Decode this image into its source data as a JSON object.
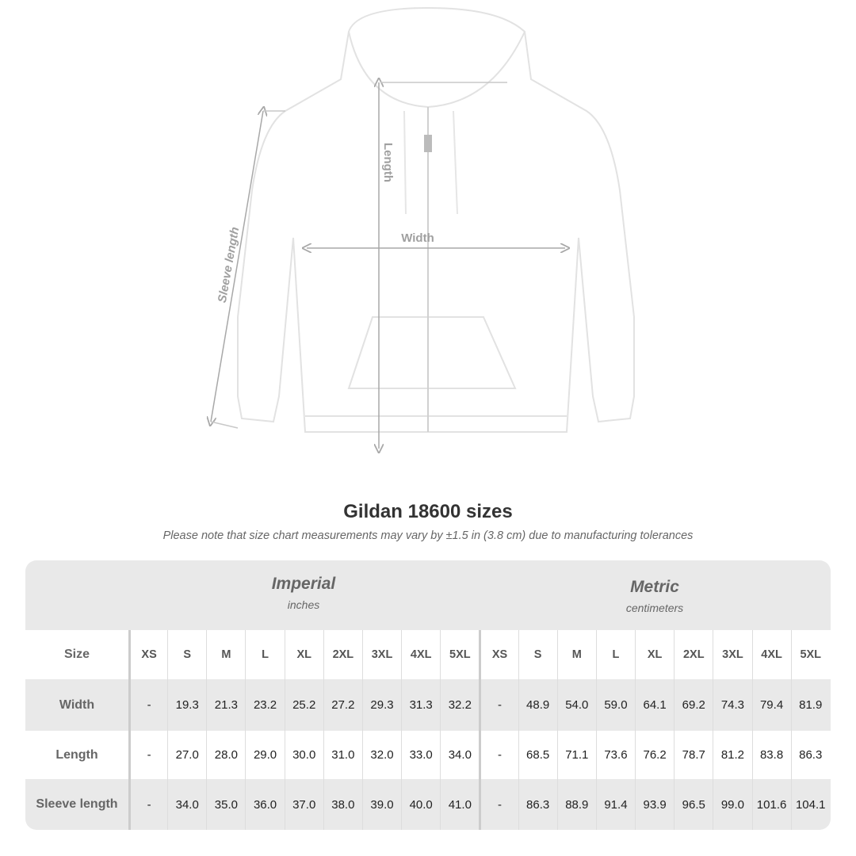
{
  "diagram": {
    "labels": {
      "length": "Length",
      "width": "Width",
      "sleeve": "Sleeve length"
    },
    "colors": {
      "garment": "#ffffff",
      "outline": "#e2e2e2",
      "arrow": "#a8a8a8"
    }
  },
  "title": "Gildan 18600 sizes",
  "note": "Please note that size chart measurements may vary by ±1.5 in (3.8 cm) due to manufacturing tolerances",
  "table": {
    "imperial": {
      "name": "Imperial",
      "unit": "inches"
    },
    "metric": {
      "name": "Metric",
      "unit": "centimeters"
    },
    "size_label": "Size",
    "sizes": [
      "XS",
      "S",
      "M",
      "L",
      "XL",
      "2XL",
      "3XL",
      "4XL",
      "5XL",
      "XS",
      "S",
      "M",
      "L",
      "XL",
      "2XL",
      "3XL",
      "4XL",
      "5XL"
    ],
    "rows": [
      {
        "label": "Width",
        "values": [
          "-",
          "19.3",
          "21.3",
          "23.2",
          "25.2",
          "27.2",
          "29.3",
          "31.3",
          "32.2",
          "-",
          "48.9",
          "54.0",
          "59.0",
          "64.1",
          "69.2",
          "74.3",
          "79.4",
          "81.9"
        ]
      },
      {
        "label": "Length",
        "values": [
          "-",
          "27.0",
          "28.0",
          "29.0",
          "30.0",
          "31.0",
          "32.0",
          "33.0",
          "34.0",
          "-",
          "68.5",
          "71.1",
          "73.6",
          "76.2",
          "78.7",
          "81.2",
          "83.8",
          "86.3"
        ]
      },
      {
        "label": "Sleeve length",
        "values": [
          "-",
          "34.0",
          "35.0",
          "36.0",
          "37.0",
          "38.0",
          "39.0",
          "40.0",
          "41.0",
          "-",
          "86.3",
          "88.9",
          "91.4",
          "93.9",
          "96.5",
          "99.0",
          "101.6",
          "104.1"
        ]
      }
    ]
  }
}
